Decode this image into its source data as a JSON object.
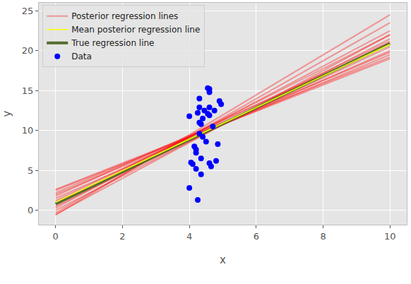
{
  "chart_data": {
    "type": "line",
    "x_label": "x",
    "y_label": "y",
    "xlim": [
      -0.5,
      10.5
    ],
    "ylim": [
      -1.8,
      26
    ],
    "xticks": [
      0,
      2,
      4,
      6,
      8,
      10
    ],
    "yticks": [
      0,
      5,
      10,
      15,
      20,
      25
    ],
    "grid": true,
    "legend": "upper left",
    "series": [
      {
        "name": "Posterior regression lines",
        "color": "#ff0000",
        "type": "line",
        "x": [
          0,
          10
        ],
        "values": [
          [
            2.5,
            19.0
          ],
          [
            2.0,
            19.5
          ],
          [
            1.5,
            20.0
          ],
          [
            1.0,
            20.5
          ],
          [
            0.5,
            21.0
          ],
          [
            0.0,
            21.5
          ],
          [
            -0.5,
            22.0
          ],
          [
            2.2,
            19.8
          ],
          [
            1.2,
            21.2
          ],
          [
            0.3,
            22.5
          ],
          [
            -0.3,
            23.5
          ],
          [
            0.8,
            22.0
          ],
          [
            1.8,
            20.8
          ],
          [
            -0.6,
            24.5
          ],
          [
            2.6,
            19.2
          ]
        ]
      },
      {
        "name": "Mean posterior regression line",
        "color": "#ffff00",
        "type": "line",
        "x": [
          0,
          10
        ],
        "values": [
          1.0,
          20.8
        ]
      },
      {
        "name": "True regression line",
        "color": "#556b2f",
        "type": "line",
        "x": [
          0,
          10
        ],
        "values": [
          0.8,
          20.9
        ]
      },
      {
        "name": "Data",
        "color": "#0000ff",
        "type": "scatter",
        "marker": "circle",
        "x": [
          4.0,
          4.05,
          4.0,
          4.1,
          4.15,
          4.2,
          4.2,
          4.2,
          4.25,
          4.25,
          4.3,
          4.3,
          4.3,
          4.35,
          4.35,
          4.35,
          4.4,
          4.4,
          4.45,
          4.5,
          4.55,
          4.55,
          4.6,
          4.6,
          4.6,
          4.6,
          4.65,
          4.7,
          4.75,
          4.8,
          4.85,
          4.9,
          4.95,
          4.6,
          4.3
        ],
        "values": [
          11.8,
          6.0,
          2.8,
          5.8,
          8.0,
          7.2,
          7.6,
          5.2,
          1.3,
          12.2,
          14.0,
          11.0,
          12.9,
          10.8,
          6.5,
          4.5,
          11.5,
          9.2,
          12.5,
          8.6,
          12.1,
          15.3,
          12.9,
          11.9,
          14.8,
          15.2,
          5.5,
          10.5,
          12.5,
          6.2,
          8.3,
          13.7,
          13.3,
          5.9,
          9.6
        ]
      }
    ]
  }
}
